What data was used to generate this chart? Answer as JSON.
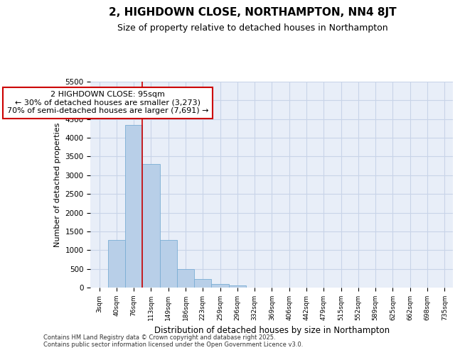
{
  "title": "2, HIGHDOWN CLOSE, NORTHAMPTON, NN4 8JT",
  "subtitle": "Size of property relative to detached houses in Northampton",
  "xlabel": "Distribution of detached houses by size in Northampton",
  "ylabel": "Number of detached properties",
  "footer_line1": "Contains HM Land Registry data © Crown copyright and database right 2025.",
  "footer_line2": "Contains public sector information licensed under the Open Government Licence v3.0.",
  "categories": [
    "3sqm",
    "40sqm",
    "76sqm",
    "113sqm",
    "149sqm",
    "186sqm",
    "223sqm",
    "259sqm",
    "296sqm",
    "332sqm",
    "369sqm",
    "406sqm",
    "442sqm",
    "479sqm",
    "515sqm",
    "552sqm",
    "589sqm",
    "625sqm",
    "662sqm",
    "698sqm",
    "735sqm"
  ],
  "values": [
    0,
    1270,
    4350,
    3300,
    1280,
    500,
    230,
    100,
    60,
    0,
    0,
    0,
    0,
    0,
    0,
    0,
    0,
    0,
    0,
    0,
    0
  ],
  "bar_color": "#b8cfe8",
  "bar_edge_color": "#7aadd4",
  "vline_x": 2.5,
  "vline_color": "#cc0000",
  "annotation_text": "2 HIGHDOWN CLOSE: 95sqm\n← 30% of detached houses are smaller (3,273)\n70% of semi-detached houses are larger (7,691) →",
  "annotation_box_color": "#ffffff",
  "annotation_box_edge": "#cc0000",
  "ylim": [
    0,
    5500
  ],
  "yticks": [
    0,
    500,
    1000,
    1500,
    2000,
    2500,
    3000,
    3500,
    4000,
    4500,
    5000,
    5500
  ],
  "grid_color": "#c8d4e8",
  "bg_color": "#e8eef8",
  "title_fontsize": 11,
  "subtitle_fontsize": 9,
  "annotation_fontsize": 8
}
